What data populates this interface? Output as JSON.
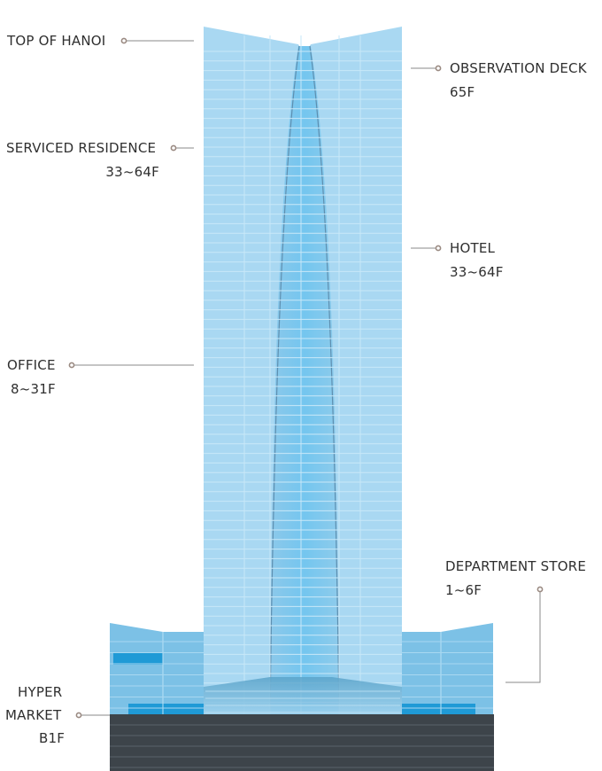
{
  "labels": {
    "top_of_hanoi": "TOP OF HANOI",
    "observation_deck": "OBSERVATION DECK",
    "observation_deck_floor": "65F",
    "serviced_residence": "SERVICED RESIDENCE",
    "serviced_residence_floors": "33~64F",
    "hotel": "HOTEL",
    "hotel_floors": "33~64F",
    "office": "OFFICE",
    "office_floors": "8~31F",
    "department_store": "DEPARTMENT STORE",
    "department_store_floors": "1~6F",
    "hyper": "HYPER",
    "market": "MARKET",
    "hyper_market_floor": "B1F"
  },
  "colors": {
    "glass_light": "#a9d8f2",
    "glass_mid": "#8fcaec",
    "glass_core": "#6fbde6",
    "glass_core_bright": "#7fd3f5",
    "podium": "#7cc1e6",
    "podium_accent": "#1f9ad6",
    "base_dark": "#3d444a",
    "leader_line": "#8a8a8a",
    "leader_dot": "#9a8a82",
    "text": "#2f2f2f"
  }
}
